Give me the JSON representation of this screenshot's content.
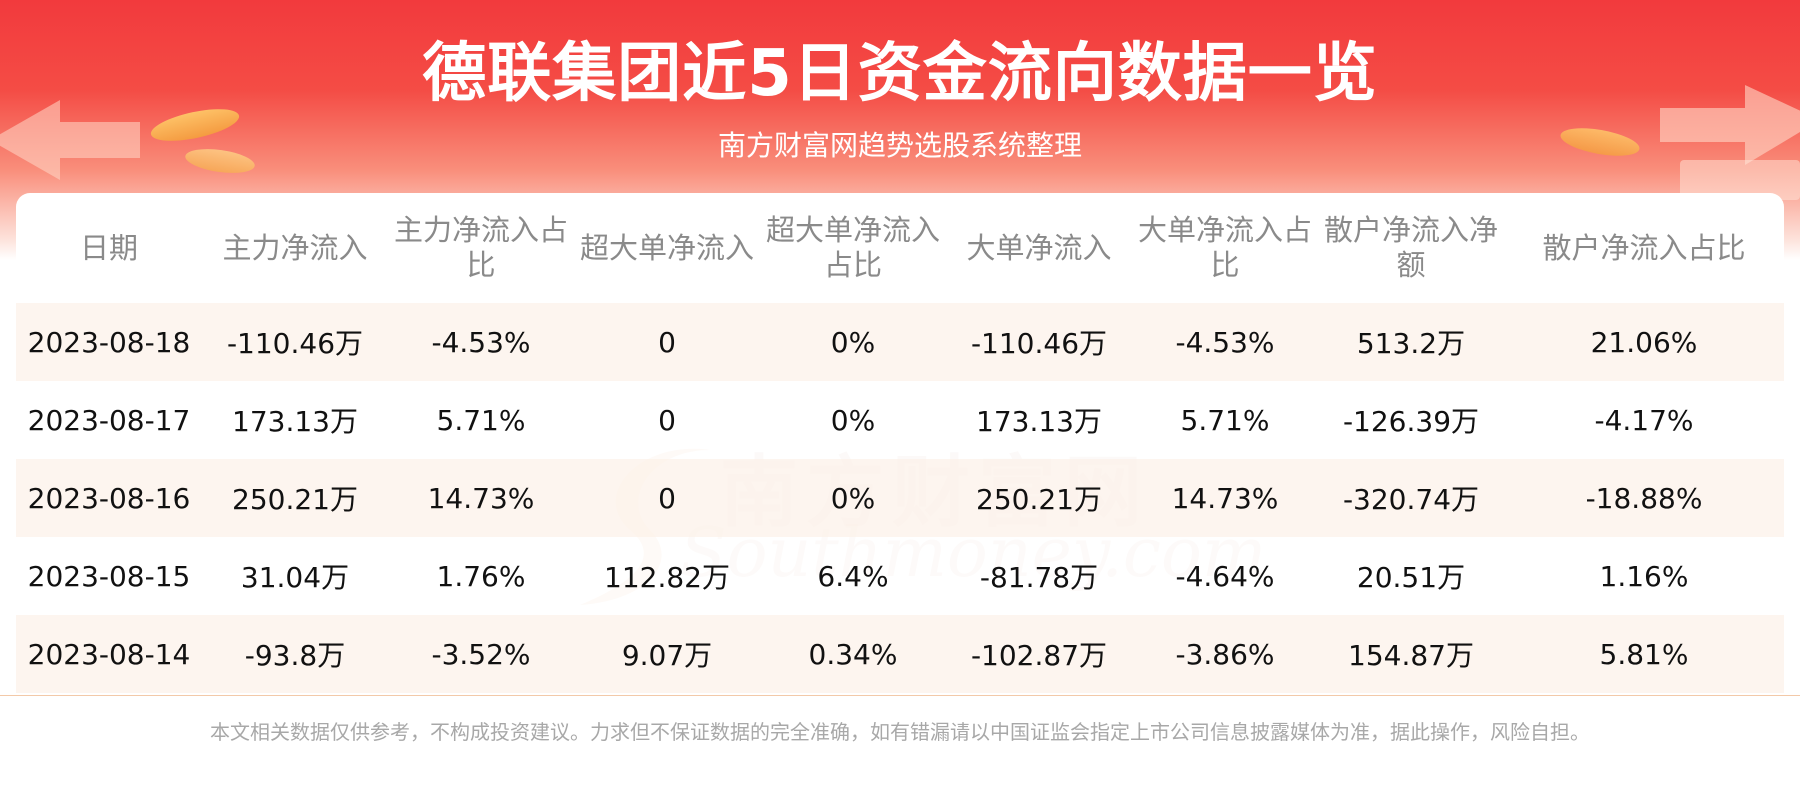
{
  "header": {
    "title": "德联集团近5日资金流向数据一览",
    "subtitle": "南方财富网趋势选股系统整理"
  },
  "watermark": {
    "cn": "南方财富网",
    "en": "Southmoney.com"
  },
  "table": {
    "columns": [
      "日期",
      "主力净流入",
      "主力净流入占比",
      "超大单净流入",
      "超大单净流入占比",
      "大单净流入",
      "大单净流入占比",
      "散户净流入净额",
      "散户净流入占比"
    ],
    "rows": [
      [
        "2023-08-18",
        "-110.46万",
        "-4.53%",
        "0",
        "0%",
        "-110.46万",
        "-4.53%",
        "513.2万",
        "21.06%"
      ],
      [
        "2023-08-17",
        "173.13万",
        "5.71%",
        "0",
        "0%",
        "173.13万",
        "5.71%",
        "-126.39万",
        "-4.17%"
      ],
      [
        "2023-08-16",
        "250.21万",
        "14.73%",
        "0",
        "0%",
        "250.21万",
        "14.73%",
        "-320.74万",
        "-18.88%"
      ],
      [
        "2023-08-15",
        "31.04万",
        "1.76%",
        "112.82万",
        "6.4%",
        "-81.78万",
        "-4.64%",
        "20.51万",
        "1.16%"
      ],
      [
        "2023-08-14",
        "-93.8万",
        "-3.52%",
        "9.07万",
        "0.34%",
        "-102.87万",
        "-3.86%",
        "154.87万",
        "5.81%"
      ]
    ]
  },
  "footer": {
    "disclaimer": "本文相关数据仅供参考，不构成投资建议。力求但不保证数据的完全准确，如有错漏请以中国证监会指定上市公司信息披露媒体为准，据此操作，风险自担。"
  },
  "colors": {
    "banner_red": "#f23a3d",
    "row_tint": "#fdf3ec",
    "header_text": "#8a8a8a"
  }
}
